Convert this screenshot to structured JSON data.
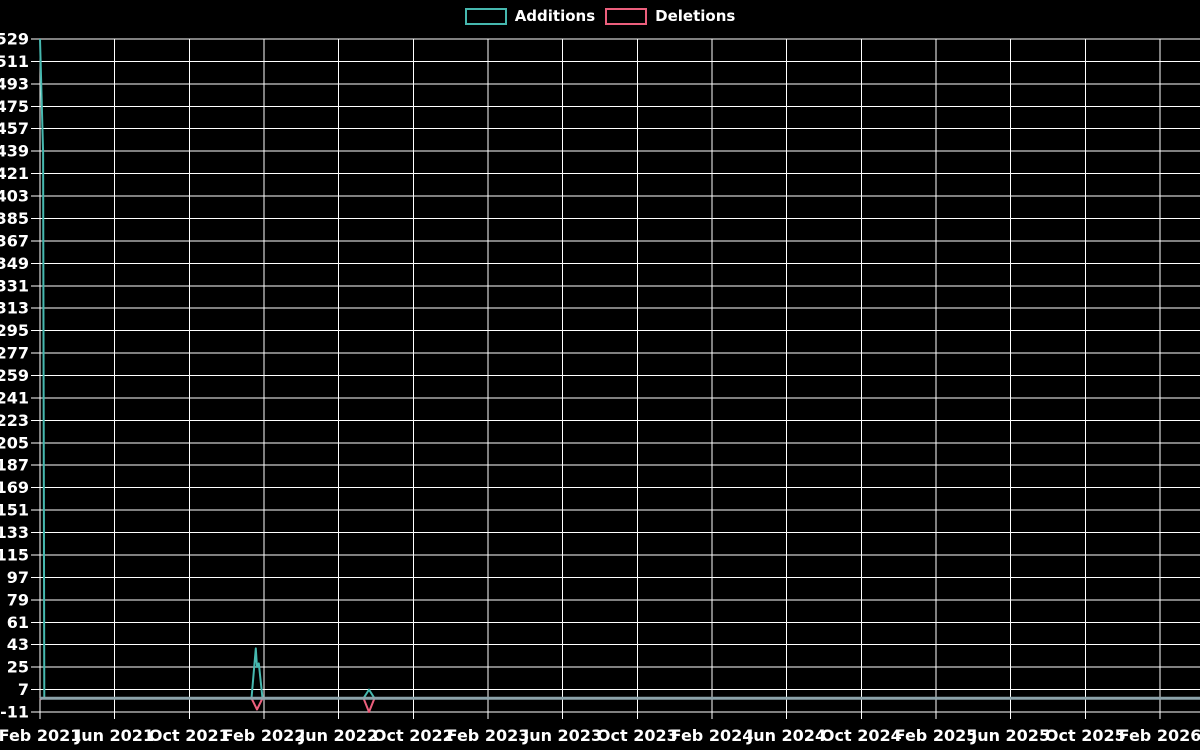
{
  "chart_data": {
    "type": "line",
    "title": "",
    "legend_position": "top-center",
    "background": "#000000",
    "grid_color": "#ffffff",
    "text_color": "#ffffff",
    "zero_line_color": "#8ca3ab",
    "grid": true,
    "x_axis": {
      "label": "",
      "start": "2021-02-01",
      "end": "2026-04-05",
      "months_per_tick": 4,
      "tick_labels": [
        "Feb 2021",
        "Jun 2021",
        "Oct 2021",
        "Feb 2022",
        "Jun 2022",
        "Oct 2022",
        "Feb 2023",
        "Jun 2023",
        "Oct 2023",
        "Feb 2024",
        "Jun 2024",
        "Oct 2024",
        "Feb 2025",
        "Jun 2025",
        "Oct 2025",
        "Feb 2026"
      ]
    },
    "y_axis": {
      "label": "",
      "min": -11,
      "max": 529,
      "step": 18,
      "tick_labels": [
        529,
        511,
        493,
        475,
        457,
        439,
        421,
        403,
        385,
        367,
        349,
        331,
        313,
        295,
        277,
        259,
        241,
        223,
        205,
        187,
        169,
        151,
        133,
        115,
        97,
        79,
        61,
        43,
        25,
        7,
        -11
      ]
    },
    "series": [
      {
        "name": "Additions",
        "color": "#46b8af",
        "points": [
          [
            "2021-02-01",
            529
          ],
          [
            "2021-02-06",
            438
          ],
          [
            "2021-02-08",
            0
          ],
          [
            "2022-01-11",
            0
          ],
          [
            "2022-01-18",
            40
          ],
          [
            "2022-01-20",
            25
          ],
          [
            "2022-01-23",
            28
          ],
          [
            "2022-01-29",
            0
          ],
          [
            "2022-07-11",
            0
          ],
          [
            "2022-07-20",
            7
          ],
          [
            "2022-07-29",
            0
          ],
          [
            "2026-04-05",
            0
          ]
        ]
      },
      {
        "name": "Deletions",
        "color": "#ec5f7d",
        "points": [
          [
            "2021-02-01",
            -1
          ],
          [
            "2021-02-05",
            0
          ],
          [
            "2022-01-11",
            0
          ],
          [
            "2022-01-20",
            -9
          ],
          [
            "2022-01-29",
            0
          ],
          [
            "2022-07-11",
            0
          ],
          [
            "2022-07-20",
            -11
          ],
          [
            "2022-07-29",
            0
          ],
          [
            "2026-04-05",
            0
          ]
        ]
      }
    ]
  }
}
